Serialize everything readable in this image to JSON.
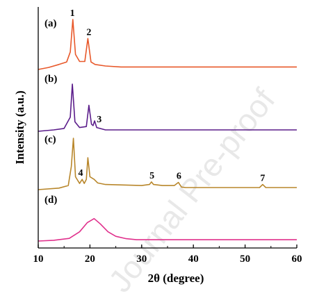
{
  "chart_data": {
    "type": "line",
    "xlabel": "2θ (degree)",
    "ylabel": "Intensity (a.u.)",
    "xlim": [
      10,
      60
    ],
    "x_ticks": [
      "10",
      "20",
      "30",
      "40",
      "50",
      "60"
    ],
    "grid": false,
    "watermark": "Journal Pre-proof",
    "series": [
      {
        "panel": "(a)",
        "color": "#e8582a",
        "baseline_level": 0.03,
        "points": [
          [
            10,
            0.0
          ],
          [
            12,
            0.04
          ],
          [
            14,
            0.1
          ],
          [
            15.5,
            0.15
          ],
          [
            16.2,
            0.35
          ],
          [
            16.7,
            1.0
          ],
          [
            17.2,
            0.3
          ],
          [
            18,
            0.16
          ],
          [
            19,
            0.16
          ],
          [
            19.6,
            0.62
          ],
          [
            20.2,
            0.15
          ],
          [
            21,
            0.1
          ],
          [
            23,
            0.07
          ],
          [
            26,
            0.05
          ],
          [
            60,
            0.05
          ]
        ]
      },
      {
        "panel": "(b)",
        "color": "#5a1c8a",
        "points": [
          [
            10,
            0.0
          ],
          [
            13,
            0.03
          ],
          [
            15,
            0.06
          ],
          [
            16.2,
            0.3
          ],
          [
            16.6,
            1.0
          ],
          [
            17.1,
            0.2
          ],
          [
            18,
            0.08
          ],
          [
            19.3,
            0.1
          ],
          [
            19.8,
            0.55
          ],
          [
            20.3,
            0.15
          ],
          [
            20.6,
            0.12
          ],
          [
            20.9,
            0.22
          ],
          [
            21.3,
            0.08
          ],
          [
            23,
            0.03
          ],
          [
            60,
            0.03
          ]
        ]
      },
      {
        "panel": "(c)",
        "color": "#b8862a",
        "points": [
          [
            10,
            0.0
          ],
          [
            14,
            0.03
          ],
          [
            15.8,
            0.08
          ],
          [
            16.4,
            0.45
          ],
          [
            16.8,
            1.0
          ],
          [
            17.2,
            0.25
          ],
          [
            18,
            0.12
          ],
          [
            18.5,
            0.2
          ],
          [
            18.9,
            0.12
          ],
          [
            19.3,
            0.2
          ],
          [
            19.6,
            0.62
          ],
          [
            20,
            0.25
          ],
          [
            20.8,
            0.2
          ],
          [
            21.5,
            0.13
          ],
          [
            23,
            0.1
          ],
          [
            30,
            0.08
          ],
          [
            31.5,
            0.1
          ],
          [
            31.9,
            0.15
          ],
          [
            32.3,
            0.1
          ],
          [
            34,
            0.08
          ],
          [
            36.3,
            0.08
          ],
          [
            37.1,
            0.14
          ],
          [
            37.7,
            0.05
          ],
          [
            38.5,
            0.04
          ],
          [
            52.8,
            0.04
          ],
          [
            53.4,
            0.1
          ],
          [
            54,
            0.04
          ],
          [
            60,
            0.04
          ]
        ]
      },
      {
        "panel": "(d)",
        "color": "#e0308c",
        "points": [
          [
            10,
            0.0
          ],
          [
            13,
            0.03
          ],
          [
            16,
            0.1
          ],
          [
            18,
            0.35
          ],
          [
            19.5,
            0.7
          ],
          [
            20.8,
            0.85
          ],
          [
            22,
            0.65
          ],
          [
            23.5,
            0.35
          ],
          [
            25,
            0.18
          ],
          [
            27,
            0.09
          ],
          [
            29,
            0.05
          ],
          [
            60,
            0.05
          ]
        ]
      }
    ],
    "annotations": [
      {
        "text": "1",
        "x": 16.6,
        "series": 0
      },
      {
        "text": "2",
        "x": 19.8,
        "series": 0
      },
      {
        "text": "3",
        "x": 21.8,
        "series": 1
      },
      {
        "text": "4",
        "x": 18.2,
        "series": 2
      },
      {
        "text": "5",
        "x": 32.0,
        "series": 2
      },
      {
        "text": "6",
        "x": 37.2,
        "series": 2
      },
      {
        "text": "7",
        "x": 53.4,
        "series": 2
      }
    ]
  }
}
